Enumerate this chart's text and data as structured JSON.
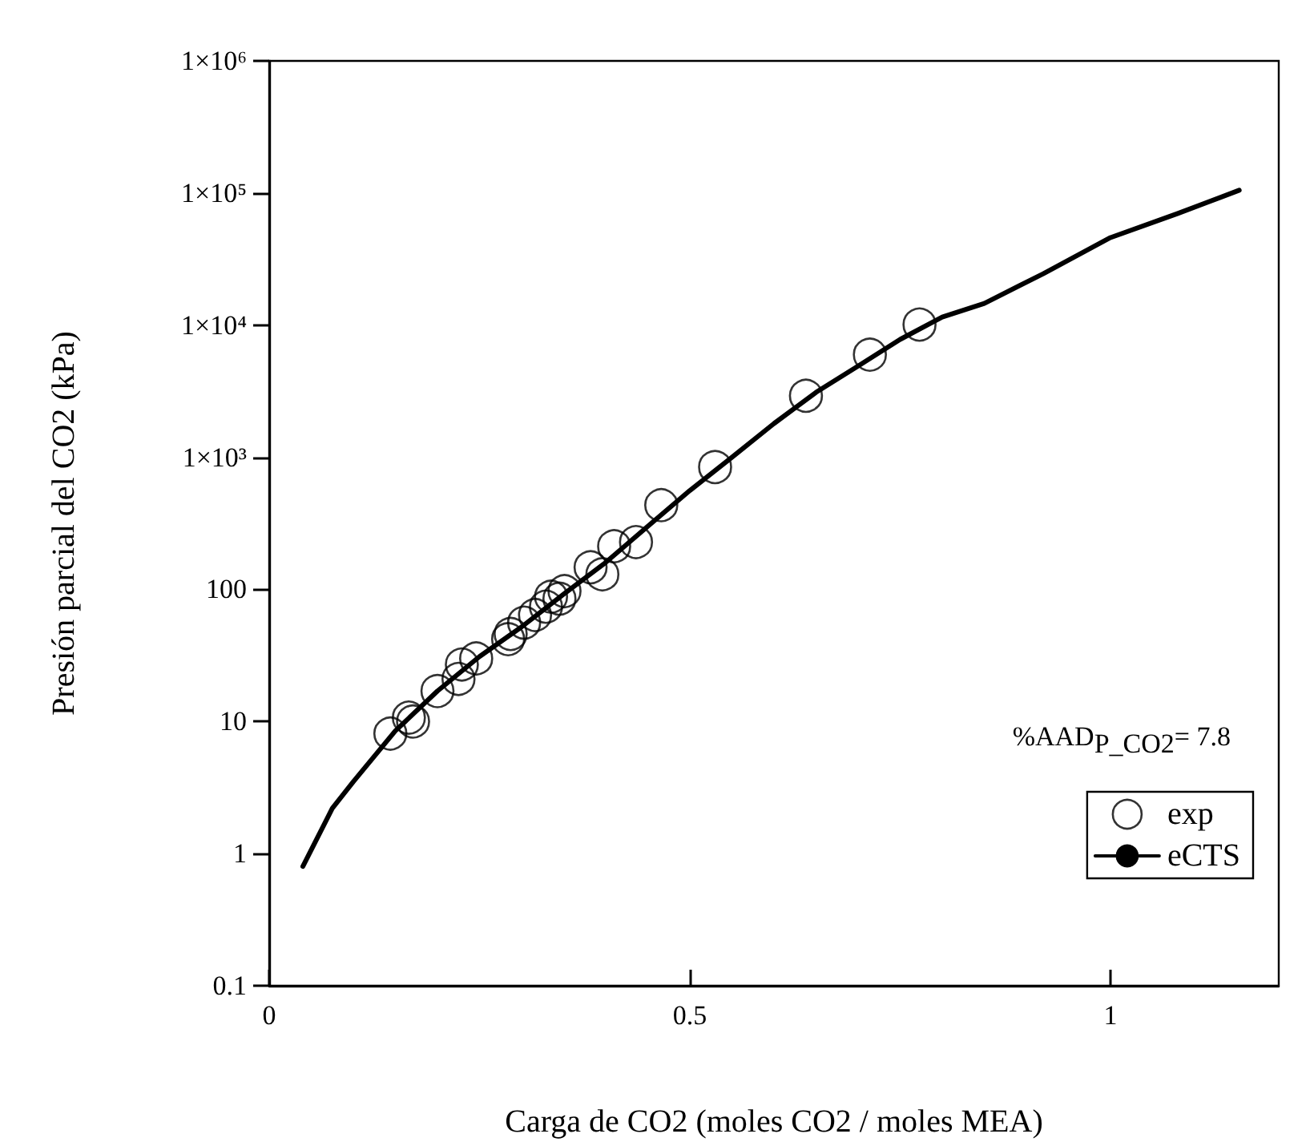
{
  "chart_data": {
    "type": "scatter",
    "xlabel": "Carga de CO2 (moles CO2 / moles MEA)",
    "ylabel": "Presión parcial del CO2 (kPa)",
    "log": "y",
    "xlim": [
      0,
      1.2
    ],
    "xticks": [
      0,
      0.5,
      1
    ],
    "ylim": [
      0.1,
      1000000
    ],
    "yticks": [
      0.1,
      1,
      10,
      100,
      {
        "value": 1000,
        "label": "1×10³"
      },
      {
        "value": 10000,
        "label": "1×10⁴"
      },
      {
        "value": 100000,
        "label": "1×10⁵"
      },
      {
        "value": 1000000,
        "label": "1×10⁶"
      }
    ],
    "grid": false,
    "legend": "bottom right",
    "annotations": [
      "%AAD$_{P_CO2}$= 7.8"
    ],
    "series": [
      {
        "name": "exp",
        "marker": "circle",
        "color": "#000000",
        "x": [
          0.144,
          0.166,
          0.171,
          0.2,
          0.225,
          0.229,
          0.246,
          0.284,
          0.287,
          0.303,
          0.316,
          0.329,
          0.335,
          0.345,
          0.351,
          0.382,
          0.396,
          0.41,
          0.436,
          0.466,
          0.53,
          0.638,
          0.714,
          0.773
        ],
        "values": [
          8.1,
          10.7,
          10,
          17,
          21,
          27,
          30,
          42,
          46,
          56,
          64,
          74,
          88,
          85,
          97,
          147,
          130,
          212,
          228,
          434,
          843,
          2920,
          5980,
          10100
        ]
      },
      {
        "name": "eCTS",
        "type": "line",
        "marker": "none",
        "line_style": "solid",
        "color": "#000000",
        "x": [
          0.04,
          0.075,
          0.1,
          0.15,
          0.2,
          0.25,
          0.3,
          0.35,
          0.4,
          0.45,
          0.5,
          0.55,
          0.6,
          0.65,
          0.7,
          0.75,
          0.8,
          0.85,
          0.92,
          1.0,
          1.08,
          1.153
        ],
        "values": [
          0.8,
          2.2,
          3.5,
          8.5,
          17,
          31,
          52,
          92,
          160,
          300,
          560,
          1000,
          1800,
          3100,
          4900,
          7800,
          11500,
          14600,
          24500,
          46000,
          70000,
          105000
        ]
      }
    ]
  }
}
